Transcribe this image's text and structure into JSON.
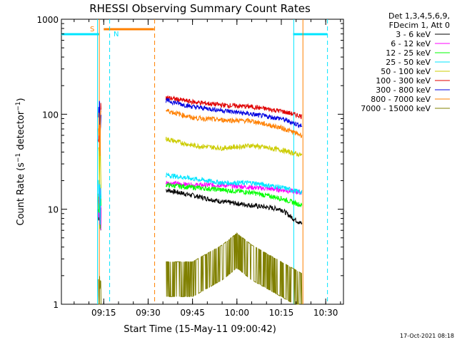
{
  "chart_data": {
    "type": "line",
    "title": "RHESSI Observing Summary Count Rates",
    "xlabel": "Start Time (15-May-11 09:00:42)",
    "ylabel": "Count Rate (s⁻¹ detector⁻¹)",
    "ylabel_main": "Count Rate (s",
    "ylabel_sup1": "−1",
    "ylabel_mid": " detector",
    "ylabel_sup2": "−1",
    "ylabel_end": ")",
    "y_scale": "log",
    "ylim": [
      1,
      1000
    ],
    "xlim_minutes": [
      0.7,
      40.4
    ],
    "time_origin_minute_after": "09:00",
    "x_ticks": [
      {
        "label": "09:15",
        "min": 15
      },
      {
        "label": "09:30",
        "min": 30
      },
      {
        "label": "09:45",
        "min": 45
      },
      {
        "label": "10:00",
        "min": 60
      },
      {
        "label": "10:15",
        "min": 75
      },
      {
        "label": "10:30",
        "min": 90
      }
    ],
    "y_ticks": [
      {
        "label": "1",
        "value": 1
      },
      {
        "label": "10",
        "value": 10
      },
      {
        "label": "100",
        "value": 100
      },
      {
        "label": "1000",
        "value": 1000
      }
    ],
    "legend": {
      "placement": "right",
      "header1": "Det 1,3,4,5,6,9,",
      "header2": "FDecim 1, Att 0"
    },
    "footer_date": "17-Oct-2021 08:18",
    "annotations": [
      {
        "label": "S",
        "color": "#ff8000"
      },
      {
        "label": "N",
        "color": "#00e5ff"
      }
    ],
    "bars": {
      "night": [
        {
          "from": 0.7,
          "to": 13.5,
          "color": "#00e5ff"
        },
        {
          "from": 79,
          "to": 90.5,
          "color": "#00e5ff"
        }
      ],
      "saa": [
        {
          "from": 15,
          "to": 32,
          "color": "#ff8000"
        }
      ]
    },
    "vlines": [
      {
        "min": 13.5,
        "color": "#ff8000",
        "style": "solid"
      },
      {
        "min": 12.9,
        "color": "#00e5ff",
        "style": "solid"
      },
      {
        "min": 17,
        "color": "#00e5ff",
        "style": "dashed"
      },
      {
        "min": 32.2,
        "color": "#ff8000",
        "style": "dashed"
      },
      {
        "min": 79.2,
        "color": "#00e5ff",
        "style": "solid"
      },
      {
        "min": 82.3,
        "color": "#ff8000",
        "style": "solid"
      },
      {
        "min": 90.6,
        "color": "#00e5ff",
        "style": "dashed"
      }
    ],
    "series": [
      {
        "name": "3 - 6 keV",
        "color": "#000000",
        "x": [
          36,
          45,
          55,
          65,
          75,
          79,
          82
        ],
        "y": [
          16,
          14,
          12,
          11,
          10,
          8,
          7
        ]
      },
      {
        "name": "6 - 12 keV",
        "color": "#ff00ff",
        "x": [
          36,
          45,
          55,
          65,
          75,
          82
        ],
        "y": [
          19,
          18,
          18,
          17,
          16,
          15
        ]
      },
      {
        "name": "12 - 25 keV",
        "color": "#00ff00",
        "x": [
          36,
          45,
          55,
          65,
          75,
          82
        ],
        "y": [
          18,
          17,
          16,
          15,
          13,
          11
        ]
      },
      {
        "name": "25 - 50 keV",
        "color": "#00e5ff",
        "x": [
          36,
          45,
          55,
          65,
          75,
          82
        ],
        "y": [
          23,
          21,
          19,
          19,
          17,
          15
        ]
      },
      {
        "name": "50 - 100 keV",
        "color": "#cccc00",
        "x": [
          36,
          45,
          55,
          65,
          75,
          82
        ],
        "y": [
          55,
          47,
          44,
          47,
          42,
          37
        ]
      },
      {
        "name": "100 - 300 keV",
        "color": "#e00000",
        "x": [
          36,
          45,
          55,
          65,
          75,
          82
        ],
        "y": [
          150,
          135,
          125,
          120,
          108,
          95
        ]
      },
      {
        "name": "300 - 800 keV",
        "color": "#0000e0",
        "x": [
          36,
          45,
          55,
          65,
          75,
          82
        ],
        "y": [
          140,
          120,
          110,
          100,
          90,
          75
        ]
      },
      {
        "name": "800 - 7000 keV",
        "color": "#ff8000",
        "x": [
          36,
          45,
          55,
          65,
          75,
          82
        ],
        "y": [
          110,
          92,
          87,
          85,
          72,
          60
        ]
      },
      {
        "name": "7000 - 15000 keV",
        "color": "#808000",
        "x": [
          36,
          45,
          55,
          60,
          65,
          75,
          82
        ],
        "y": [
          2,
          2,
          3,
          4,
          3,
          2,
          1.5
        ]
      }
    ]
  }
}
